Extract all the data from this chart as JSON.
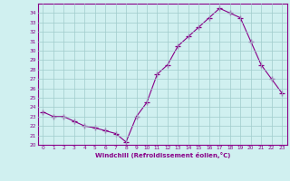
{
  "xlabel": "Windchill (Refroidissement éolien,°C)",
  "x": [
    0,
    1,
    2,
    3,
    4,
    5,
    6,
    7,
    8,
    9,
    10,
    11,
    12,
    13,
    14,
    15,
    16,
    17,
    18,
    19,
    20,
    21,
    22,
    23
  ],
  "y": [
    23.5,
    23.0,
    23.0,
    22.5,
    22.0,
    21.8,
    21.5,
    21.2,
    20.3,
    23.0,
    24.5,
    27.5,
    28.5,
    30.5,
    31.5,
    32.5,
    33.5,
    34.5,
    34.0,
    33.5,
    31.0,
    28.5,
    27.0,
    25.5
  ],
  "line_color": "#880088",
  "marker": "+",
  "marker_size": 4,
  "bg_color": "#d0f0f0",
  "grid_color": "#a0cccc",
  "axis_color": "#880088",
  "tick_color": "#880088",
  "label_color": "#880088",
  "ylim": [
    20,
    35
  ],
  "xlim": [
    -0.5,
    23.5
  ],
  "yticks": [
    20,
    21,
    22,
    23,
    24,
    25,
    26,
    27,
    28,
    29,
    30,
    31,
    32,
    33,
    34
  ],
  "xticks": [
    0,
    1,
    2,
    3,
    4,
    5,
    6,
    7,
    8,
    9,
    10,
    11,
    12,
    13,
    14,
    15,
    16,
    17,
    18,
    19,
    20,
    21,
    22,
    23
  ]
}
